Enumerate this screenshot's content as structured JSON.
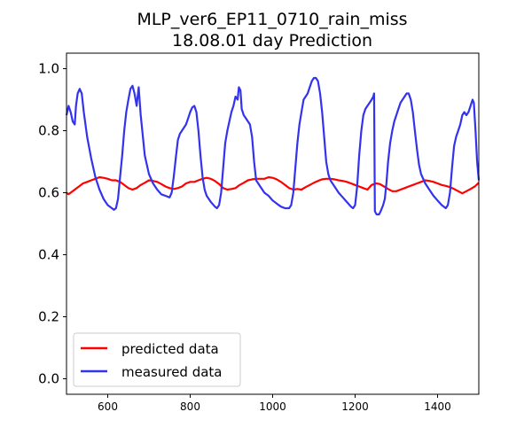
{
  "chart_data": {
    "type": "line",
    "title_lines": [
      "MLP_ver6_EP11_0710_rain_miss",
      "18.08.01 day Prediction"
    ],
    "xlabel": "",
    "ylabel": "",
    "xlim": [
      500,
      1500
    ],
    "ylim": [
      -0.05,
      1.05
    ],
    "x_ticks": [
      600,
      800,
      1000,
      1200,
      1400
    ],
    "y_ticks": [
      0.0,
      0.2,
      0.4,
      0.6,
      0.8,
      1.0
    ],
    "x_tick_labels": [
      "600",
      "800",
      "1000",
      "1200",
      "1400"
    ],
    "y_tick_labels": [
      "0.0",
      "0.2",
      "0.4",
      "0.6",
      "0.8",
      "1.0"
    ],
    "grid": false,
    "legend_position": "lower-left",
    "series": [
      {
        "name": "predicted data",
        "color": "#ff0000",
        "points": [
          [
            500,
            0.6
          ],
          [
            505,
            0.595
          ],
          [
            510,
            0.6
          ],
          [
            520,
            0.61
          ],
          [
            530,
            0.62
          ],
          [
            540,
            0.63
          ],
          [
            550,
            0.635
          ],
          [
            560,
            0.64
          ],
          [
            570,
            0.645
          ],
          [
            580,
            0.65
          ],
          [
            590,
            0.648
          ],
          [
            600,
            0.645
          ],
          [
            610,
            0.64
          ],
          [
            620,
            0.64
          ],
          [
            630,
            0.635
          ],
          [
            640,
            0.625
          ],
          [
            650,
            0.615
          ],
          [
            660,
            0.61
          ],
          [
            670,
            0.615
          ],
          [
            680,
            0.625
          ],
          [
            690,
            0.632
          ],
          [
            700,
            0.64
          ],
          [
            710,
            0.638
          ],
          [
            720,
            0.635
          ],
          [
            730,
            0.628
          ],
          [
            740,
            0.62
          ],
          [
            750,
            0.615
          ],
          [
            760,
            0.612
          ],
          [
            770,
            0.615
          ],
          [
            780,
            0.62
          ],
          [
            790,
            0.63
          ],
          [
            800,
            0.635
          ],
          [
            810,
            0.635
          ],
          [
            820,
            0.64
          ],
          [
            830,
            0.645
          ],
          [
            840,
            0.648
          ],
          [
            850,
            0.645
          ],
          [
            860,
            0.638
          ],
          [
            870,
            0.628
          ],
          [
            880,
            0.615
          ],
          [
            890,
            0.61
          ],
          [
            900,
            0.612
          ],
          [
            910,
            0.615
          ],
          [
            920,
            0.625
          ],
          [
            930,
            0.632
          ],
          [
            940,
            0.64
          ],
          [
            950,
            0.643
          ],
          [
            960,
            0.645
          ],
          [
            970,
            0.645
          ],
          [
            980,
            0.645
          ],
          [
            990,
            0.65
          ],
          [
            1000,
            0.648
          ],
          [
            1010,
            0.643
          ],
          [
            1020,
            0.635
          ],
          [
            1030,
            0.625
          ],
          [
            1040,
            0.615
          ],
          [
            1050,
            0.61
          ],
          [
            1060,
            0.612
          ],
          [
            1070,
            0.61
          ],
          [
            1080,
            0.618
          ],
          [
            1090,
            0.625
          ],
          [
            1100,
            0.632
          ],
          [
            1110,
            0.638
          ],
          [
            1120,
            0.643
          ],
          [
            1130,
            0.645
          ],
          [
            1140,
            0.645
          ],
          [
            1150,
            0.643
          ],
          [
            1160,
            0.64
          ],
          [
            1170,
            0.638
          ],
          [
            1180,
            0.635
          ],
          [
            1190,
            0.63
          ],
          [
            1200,
            0.625
          ],
          [
            1210,
            0.62
          ],
          [
            1220,
            0.615
          ],
          [
            1230,
            0.61
          ],
          [
            1240,
            0.625
          ],
          [
            1250,
            0.63
          ],
          [
            1260,
            0.628
          ],
          [
            1270,
            0.62
          ],
          [
            1280,
            0.612
          ],
          [
            1290,
            0.605
          ],
          [
            1300,
            0.605
          ],
          [
            1310,
            0.61
          ],
          [
            1320,
            0.615
          ],
          [
            1330,
            0.62
          ],
          [
            1340,
            0.625
          ],
          [
            1350,
            0.63
          ],
          [
            1360,
            0.635
          ],
          [
            1370,
            0.64
          ],
          [
            1380,
            0.638
          ],
          [
            1390,
            0.635
          ],
          [
            1400,
            0.63
          ],
          [
            1410,
            0.625
          ],
          [
            1420,
            0.622
          ],
          [
            1430,
            0.618
          ],
          [
            1440,
            0.612
          ],
          [
            1450,
            0.605
          ],
          [
            1460,
            0.598
          ],
          [
            1470,
            0.605
          ],
          [
            1480,
            0.612
          ],
          [
            1490,
            0.62
          ],
          [
            1500,
            0.632
          ]
        ]
      },
      {
        "name": "measured data",
        "color": "#3333ee",
        "points": [
          [
            500,
            0.85
          ],
          [
            505,
            0.88
          ],
          [
            510,
            0.86
          ],
          [
            515,
            0.83
          ],
          [
            520,
            0.82
          ],
          [
            523,
            0.88
          ],
          [
            527,
            0.92
          ],
          [
            532,
            0.935
          ],
          [
            537,
            0.92
          ],
          [
            542,
            0.86
          ],
          [
            550,
            0.78
          ],
          [
            560,
            0.71
          ],
          [
            570,
            0.65
          ],
          [
            580,
            0.61
          ],
          [
            590,
            0.58
          ],
          [
            600,
            0.56
          ],
          [
            610,
            0.55
          ],
          [
            615,
            0.545
          ],
          [
            620,
            0.55
          ],
          [
            625,
            0.58
          ],
          [
            630,
            0.65
          ],
          [
            635,
            0.72
          ],
          [
            640,
            0.8
          ],
          [
            645,
            0.86
          ],
          [
            650,
            0.9
          ],
          [
            655,
            0.935
          ],
          [
            660,
            0.945
          ],
          [
            665,
            0.92
          ],
          [
            670,
            0.88
          ],
          [
            675,
            0.94
          ],
          [
            680,
            0.85
          ],
          [
            690,
            0.72
          ],
          [
            700,
            0.66
          ],
          [
            710,
            0.63
          ],
          [
            720,
            0.61
          ],
          [
            730,
            0.595
          ],
          [
            740,
            0.59
          ],
          [
            750,
            0.585
          ],
          [
            755,
            0.6
          ],
          [
            760,
            0.65
          ],
          [
            765,
            0.71
          ],
          [
            770,
            0.77
          ],
          [
            775,
            0.79
          ],
          [
            780,
            0.8
          ],
          [
            785,
            0.81
          ],
          [
            790,
            0.82
          ],
          [
            795,
            0.84
          ],
          [
            800,
            0.86
          ],
          [
            805,
            0.875
          ],
          [
            810,
            0.88
          ],
          [
            815,
            0.86
          ],
          [
            820,
            0.8
          ],
          [
            825,
            0.72
          ],
          [
            830,
            0.65
          ],
          [
            835,
            0.61
          ],
          [
            840,
            0.59
          ],
          [
            850,
            0.57
          ],
          [
            860,
            0.555
          ],
          [
            865,
            0.55
          ],
          [
            870,
            0.56
          ],
          [
            875,
            0.6
          ],
          [
            880,
            0.68
          ],
          [
            885,
            0.76
          ],
          [
            890,
            0.8
          ],
          [
            895,
            0.83
          ],
          [
            900,
            0.86
          ],
          [
            905,
            0.88
          ],
          [
            910,
            0.91
          ],
          [
            915,
            0.9
          ],
          [
            918,
            0.94
          ],
          [
            922,
            0.93
          ],
          [
            925,
            0.87
          ],
          [
            930,
            0.85
          ],
          [
            935,
            0.84
          ],
          [
            940,
            0.83
          ],
          [
            945,
            0.82
          ],
          [
            950,
            0.78
          ],
          [
            955,
            0.7
          ],
          [
            960,
            0.64
          ],
          [
            970,
            0.62
          ],
          [
            980,
            0.6
          ],
          [
            990,
            0.59
          ],
          [
            1000,
            0.575
          ],
          [
            1010,
            0.565
          ],
          [
            1020,
            0.555
          ],
          [
            1030,
            0.55
          ],
          [
            1040,
            0.55
          ],
          [
            1045,
            0.56
          ],
          [
            1050,
            0.6
          ],
          [
            1055,
            0.68
          ],
          [
            1060,
            0.76
          ],
          [
            1065,
            0.82
          ],
          [
            1070,
            0.86
          ],
          [
            1075,
            0.9
          ],
          [
            1080,
            0.91
          ],
          [
            1085,
            0.92
          ],
          [
            1090,
            0.94
          ],
          [
            1095,
            0.96
          ],
          [
            1100,
            0.97
          ],
          [
            1105,
            0.97
          ],
          [
            1110,
            0.96
          ],
          [
            1115,
            0.92
          ],
          [
            1120,
            0.86
          ],
          [
            1125,
            0.78
          ],
          [
            1130,
            0.7
          ],
          [
            1135,
            0.66
          ],
          [
            1140,
            0.64
          ],
          [
            1150,
            0.62
          ],
          [
            1160,
            0.6
          ],
          [
            1170,
            0.585
          ],
          [
            1180,
            0.57
          ],
          [
            1190,
            0.555
          ],
          [
            1195,
            0.55
          ],
          [
            1200,
            0.56
          ],
          [
            1205,
            0.62
          ],
          [
            1210,
            0.72
          ],
          [
            1215,
            0.8
          ],
          [
            1220,
            0.85
          ],
          [
            1225,
            0.87
          ],
          [
            1230,
            0.88
          ],
          [
            1235,
            0.89
          ],
          [
            1240,
            0.9
          ],
          [
            1244,
            0.91
          ],
          [
            1246,
            0.92
          ],
          [
            1248,
            0.54
          ],
          [
            1252,
            0.53
          ],
          [
            1258,
            0.53
          ],
          [
            1262,
            0.54
          ],
          [
            1268,
            0.56
          ],
          [
            1272,
            0.58
          ],
          [
            1276,
            0.63
          ],
          [
            1280,
            0.7
          ],
          [
            1285,
            0.76
          ],
          [
            1290,
            0.8
          ],
          [
            1295,
            0.83
          ],
          [
            1300,
            0.85
          ],
          [
            1305,
            0.87
          ],
          [
            1310,
            0.89
          ],
          [
            1315,
            0.9
          ],
          [
            1320,
            0.91
          ],
          [
            1325,
            0.92
          ],
          [
            1330,
            0.92
          ],
          [
            1335,
            0.9
          ],
          [
            1340,
            0.86
          ],
          [
            1345,
            0.8
          ],
          [
            1350,
            0.74
          ],
          [
            1355,
            0.69
          ],
          [
            1360,
            0.66
          ],
          [
            1370,
            0.63
          ],
          [
            1380,
            0.61
          ],
          [
            1390,
            0.59
          ],
          [
            1400,
            0.575
          ],
          [
            1410,
            0.56
          ],
          [
            1415,
            0.555
          ],
          [
            1420,
            0.55
          ],
          [
            1425,
            0.56
          ],
          [
            1430,
            0.6
          ],
          [
            1435,
            0.68
          ],
          [
            1440,
            0.75
          ],
          [
            1445,
            0.78
          ],
          [
            1450,
            0.8
          ],
          [
            1455,
            0.82
          ],
          [
            1460,
            0.85
          ],
          [
            1465,
            0.86
          ],
          [
            1470,
            0.85
          ],
          [
            1475,
            0.86
          ],
          [
            1480,
            0.88
          ],
          [
            1485,
            0.9
          ],
          [
            1488,
            0.89
          ],
          [
            1492,
            0.8
          ],
          [
            1496,
            0.7
          ],
          [
            1500,
            0.64
          ]
        ]
      }
    ]
  }
}
